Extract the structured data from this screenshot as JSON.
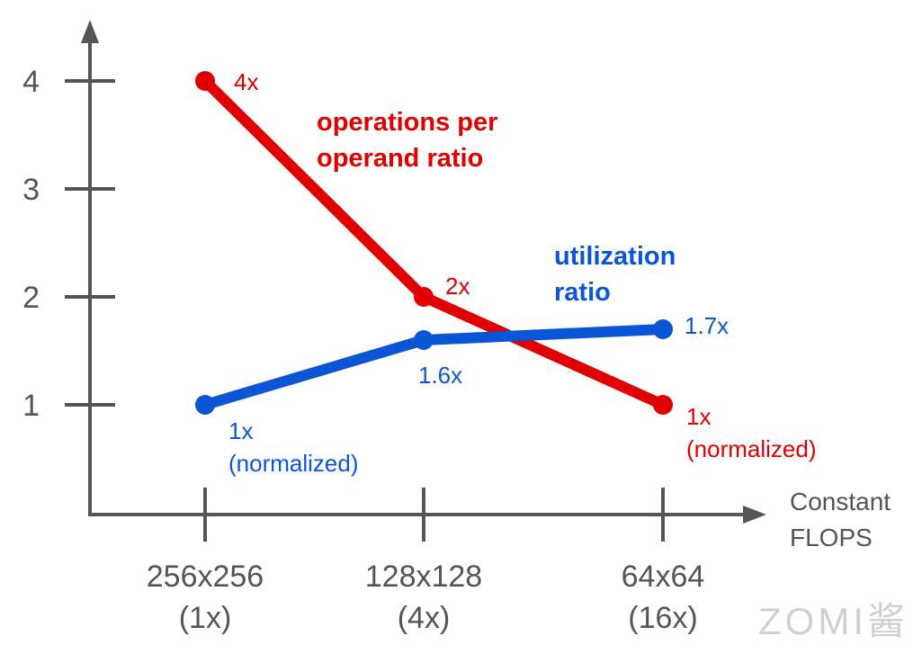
{
  "chart_data": {
    "type": "line",
    "title": "",
    "xlabel": [
      "Constant",
      "FLOPS"
    ],
    "ylabel": "",
    "categories": [
      [
        "256x256",
        "(1x)"
      ],
      [
        "128x128",
        "(4x)"
      ],
      [
        "64x64",
        "(16x)"
      ]
    ],
    "y_ticks": [
      "1",
      "2",
      "3",
      "4"
    ],
    "ylim": [
      0,
      4.5
    ],
    "grid": false,
    "series": [
      {
        "name": [
          "operations per",
          "operand ratio"
        ],
        "color": "#e00000",
        "values": [
          4,
          2,
          1
        ],
        "labels": [
          [
            "4x"
          ],
          [
            "2x"
          ],
          [
            "1x",
            "(normalized)"
          ]
        ]
      },
      {
        "name": [
          "utilization",
          "ratio"
        ],
        "color": "#0a55d6",
        "values": [
          1,
          1.6,
          1.7
        ],
        "labels": [
          [
            "1x",
            "(normalized)"
          ],
          [
            "1.6x"
          ],
          [
            "1.7x"
          ]
        ]
      }
    ]
  },
  "watermark": "ZOMI酱"
}
